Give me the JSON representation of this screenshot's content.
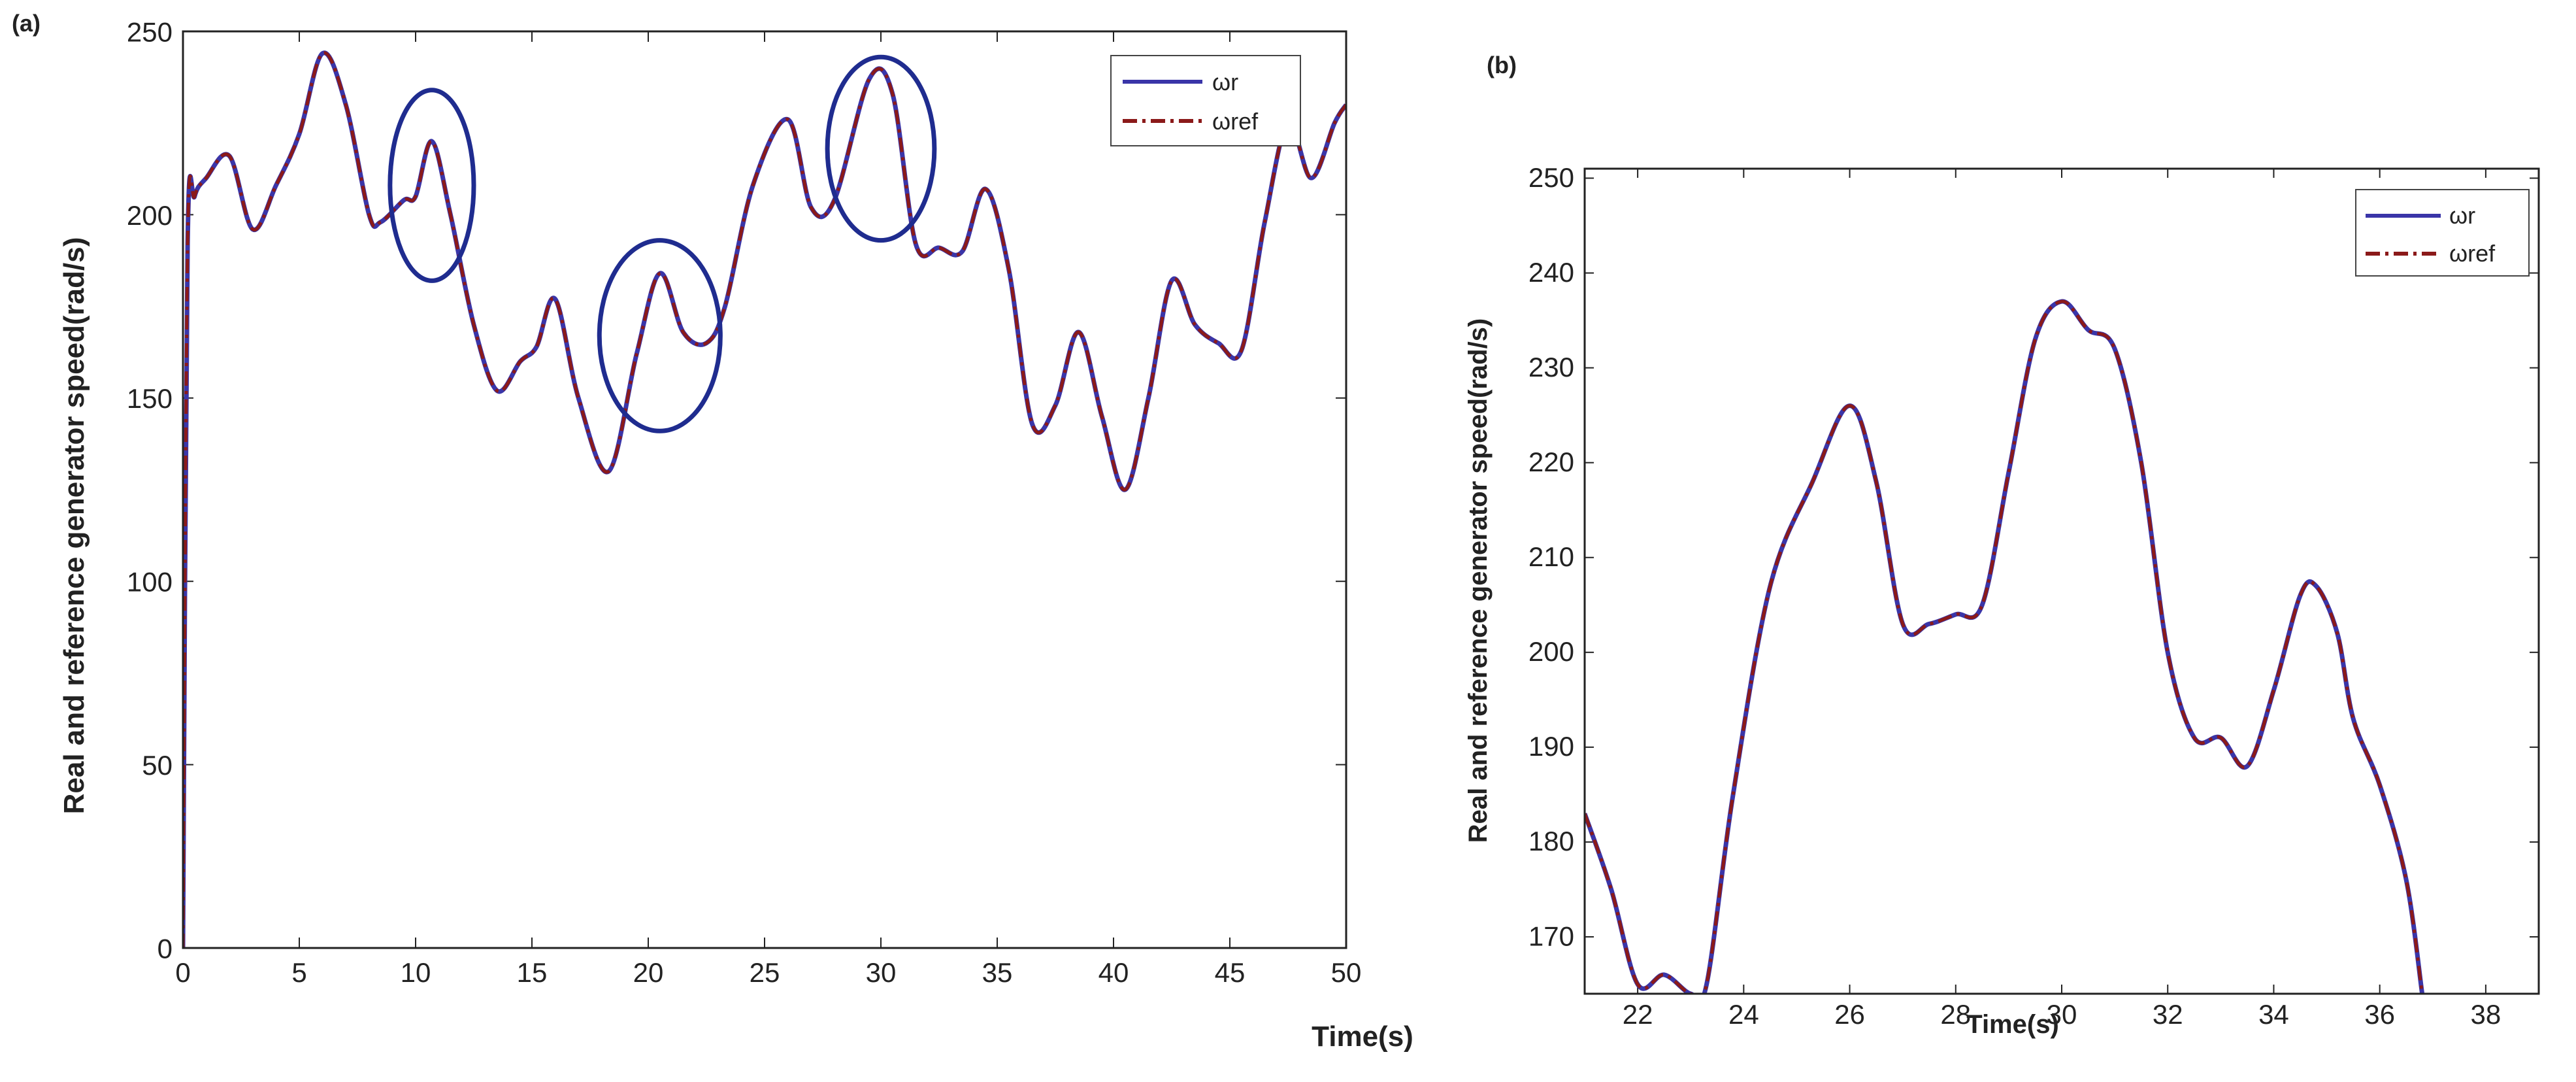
{
  "colors": {
    "wr": "#3a35a8",
    "wref": "#8b1a1a",
    "ellipse": "#1f2c8f",
    "axis": "#222222",
    "legend_border": "#444444"
  },
  "chart_data": [
    {
      "type": "line",
      "panel_label": "(a)",
      "xlabel": "Time(s)",
      "ylabel": "Real and reference generator speed(rad/s)",
      "xlim": [
        0,
        50
      ],
      "ylim": [
        0,
        250
      ],
      "xticks": [
        0,
        5,
        10,
        15,
        20,
        25,
        30,
        35,
        40,
        45,
        50
      ],
      "yticks": [
        0,
        50,
        100,
        150,
        200,
        250
      ],
      "grid": false,
      "legend_position": "top-right",
      "series": [
        {
          "name": "ωr",
          "style": "solid"
        },
        {
          "name": "ωref",
          "style": "dash-dot"
        }
      ],
      "x": [
        0,
        0.2,
        0.5,
        1,
        2,
        3,
        4,
        5,
        6,
        7,
        8,
        8.5,
        9.5,
        10,
        10.7,
        11.5,
        12.5,
        13.5,
        14.5,
        15.2,
        16,
        17,
        18.3,
        19.5,
        20.5,
        21.5,
        22.5,
        23.3,
        24.5,
        26,
        27,
        28,
        29.5,
        30.5,
        31.5,
        32.5,
        33.5,
        34.5,
        35.5,
        36.5,
        37.5,
        38.5,
        39.5,
        40.5,
        41.5,
        42.5,
        43.5,
        44.5,
        45.5,
        46.5,
        47.5,
        48.5,
        49.5,
        50
      ],
      "y": [
        0,
        192,
        205,
        210,
        216,
        196,
        208,
        222,
        244,
        230,
        200,
        198,
        204,
        205,
        220,
        200,
        170,
        152,
        160,
        164,
        177,
        150,
        130,
        162,
        184,
        168,
        165,
        175,
        208,
        226,
        202,
        204,
        237,
        233,
        192,
        191,
        190,
        207,
        185,
        143,
        148,
        168,
        145,
        125,
        150,
        182,
        170,
        165,
        163,
        198,
        225,
        210,
        225,
        230
      ],
      "annotations": [
        {
          "shape": "ellipse",
          "cx": 10.7,
          "cy": 208,
          "rx": 1.8,
          "ry": 26
        },
        {
          "shape": "ellipse",
          "cx": 20.5,
          "cy": 167,
          "rx": 2.6,
          "ry": 26
        },
        {
          "shape": "ellipse",
          "cx": 30.0,
          "cy": 218,
          "rx": 2.3,
          "ry": 25
        }
      ]
    },
    {
      "type": "line",
      "panel_label": "(b)",
      "xlabel": "Time(s)",
      "ylabel": "Real and reference generator speed(rad/s)",
      "xlim": [
        21,
        39
      ],
      "ylim": [
        164,
        251
      ],
      "xticks": [
        22,
        24,
        26,
        28,
        30,
        32,
        34,
        36,
        38
      ],
      "yticks": [
        170,
        180,
        190,
        200,
        210,
        220,
        230,
        240,
        250
      ],
      "grid": false,
      "legend_position": "top-right",
      "series": [
        {
          "name": "ωr",
          "style": "solid"
        },
        {
          "name": "ωref",
          "style": "dash-dot"
        }
      ],
      "x": [
        21,
        21.5,
        22,
        22.5,
        23,
        23.3,
        23.8,
        24.5,
        25.3,
        26,
        26.5,
        27,
        27.5,
        28,
        28.5,
        29,
        29.5,
        30,
        30.5,
        31,
        31.5,
        32,
        32.5,
        33,
        33.5,
        34,
        34.5,
        34.8,
        35.2,
        35.5,
        36,
        36.5,
        36.8
      ],
      "y": [
        183,
        175,
        165,
        166,
        164,
        165,
        185,
        207,
        218,
        226,
        218,
        203,
        203,
        204,
        205,
        219,
        233,
        237,
        234,
        232,
        220,
        200,
        191,
        191,
        188,
        196,
        206,
        207,
        202,
        193,
        186,
        176,
        164
      ]
    }
  ]
}
